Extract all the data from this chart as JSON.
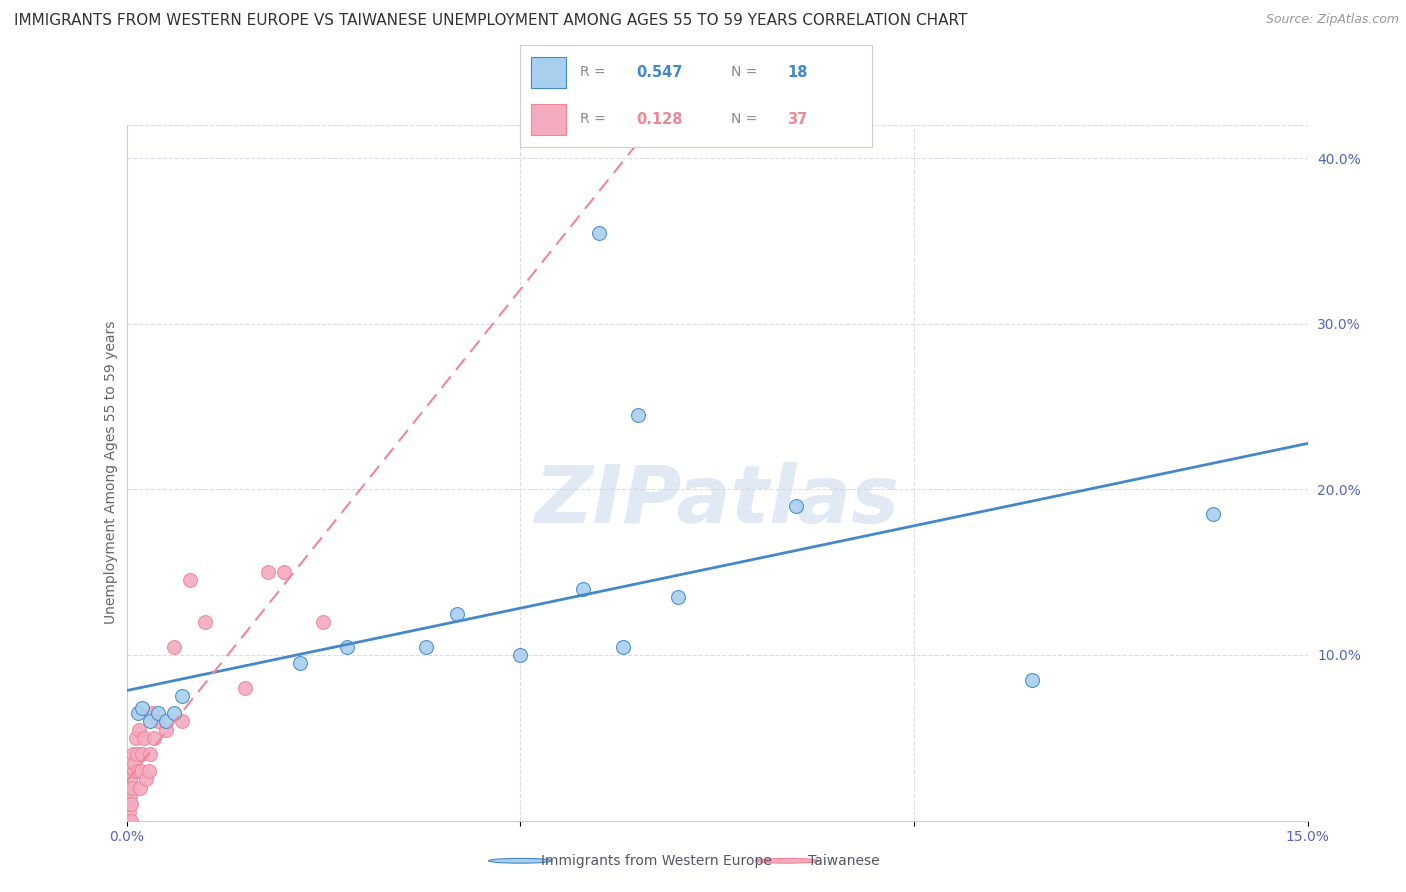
{
  "title": "IMMIGRANTS FROM WESTERN EUROPE VS TAIWANESE UNEMPLOYMENT AMONG AGES 55 TO 59 YEARS CORRELATION CHART",
  "source": "Source: ZipAtlas.com",
  "ylabel": "Unemployment Among Ages 55 to 59 years",
  "legend1_label": "Immigrants from Western Europe",
  "legend1_R": "0.547",
  "legend1_N": "18",
  "legend2_label": "Taiwanese",
  "legend2_R": "0.128",
  "legend2_N": "37",
  "blue_color": "#A8CFEE",
  "pink_color": "#F4AABF",
  "blue_line_color": "#4488CC",
  "pink_line_color": "#EE8899",
  "watermark": "ZIPatlas",
  "xlim": [
    0.0,
    0.15
  ],
  "ylim": [
    0.0,
    0.42
  ],
  "x_ticks": [
    0.0,
    0.05,
    0.1,
    0.15
  ],
  "x_tick_labels": [
    "0.0%",
    "",
    "",
    "15.0%"
  ],
  "y_ticks_right": [
    0.0,
    0.1,
    0.2,
    0.3,
    0.4
  ],
  "y_tick_labels_right": [
    "",
    "10.0%",
    "20.0%",
    "30.0%",
    "40.0%"
  ],
  "blue_x": [
    0.0015,
    0.002,
    0.003,
    0.004,
    0.005,
    0.006,
    0.007,
    0.022,
    0.028,
    0.038,
    0.042,
    0.05,
    0.058,
    0.063,
    0.07,
    0.085,
    0.115,
    0.138
  ],
  "blue_y": [
    0.065,
    0.068,
    0.06,
    0.065,
    0.06,
    0.065,
    0.075,
    0.095,
    0.105,
    0.105,
    0.125,
    0.1,
    0.14,
    0.105,
    0.135,
    0.19,
    0.085,
    0.185
  ],
  "blue_outlier_x": [
    0.06
  ],
  "blue_outlier_y": [
    0.355
  ],
  "blue_outlier2_x": [
    0.065
  ],
  "blue_outlier2_y": [
    0.245
  ],
  "pink_x": [
    0.0002,
    0.0002,
    0.0003,
    0.0003,
    0.0004,
    0.0004,
    0.0005,
    0.0005,
    0.0006,
    0.0006,
    0.0007,
    0.0008,
    0.0009,
    0.001,
    0.0012,
    0.0013,
    0.0015,
    0.0016,
    0.0017,
    0.0018,
    0.002,
    0.0022,
    0.0025,
    0.0028,
    0.003,
    0.0032,
    0.0035,
    0.004,
    0.005,
    0.006,
    0.007,
    0.008,
    0.01,
    0.015,
    0.018,
    0.02,
    0.025
  ],
  "pink_y": [
    0.0,
    0.01,
    0.005,
    0.02,
    0.0,
    0.015,
    0.01,
    0.025,
    0.0,
    0.01,
    0.02,
    0.04,
    0.03,
    0.035,
    0.05,
    0.04,
    0.03,
    0.055,
    0.02,
    0.03,
    0.04,
    0.05,
    0.025,
    0.03,
    0.04,
    0.065,
    0.05,
    0.06,
    0.055,
    0.105,
    0.06,
    0.145,
    0.12,
    0.08,
    0.15,
    0.15,
    0.12
  ],
  "background_color": "#FFFFFF",
  "grid_color": "#DCDCE8",
  "title_fontsize": 11,
  "tick_fontsize": 10,
  "watermark_fontsize": 58,
  "dot_size": 100
}
